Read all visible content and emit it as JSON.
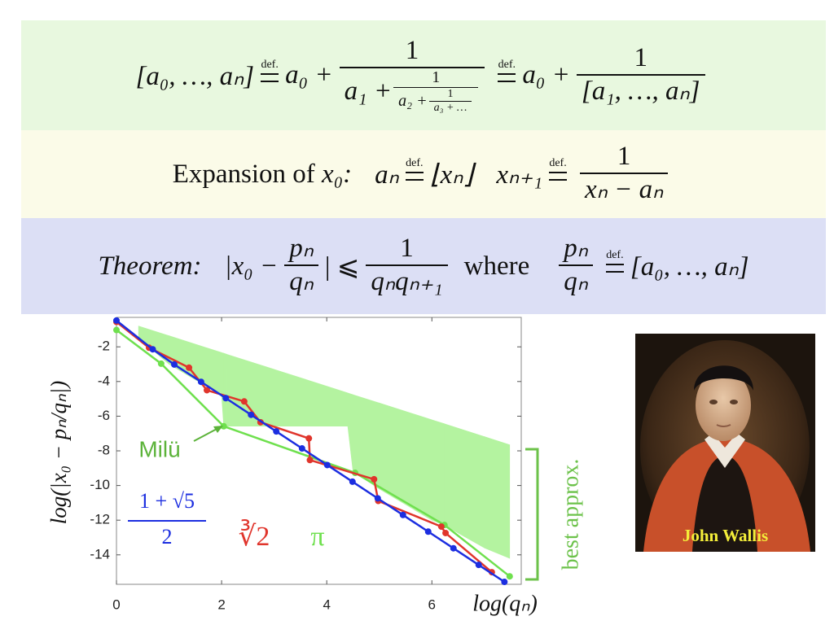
{
  "definition": {
    "lhs": "[a₀, …, aₙ]",
    "def": "def.",
    "term": "a₀ +",
    "fraction": {
      "numerator": "1",
      "denominator": "a₁ +",
      "nested": {
        "numerator": "1",
        "denominator": "a₂ +",
        "nested": {
          "numerator": "1",
          "denominator": "a₃ + …"
        }
      }
    },
    "def_2": "def.",
    "term_2": "a₀ +",
    "fraction_2": {
      "numerator": "1",
      "denominator": "[a₁, …, aₙ]"
    }
  },
  "expansion": {
    "label": "Expansion of",
    "variable": "x₀:",
    "lhs": "aₙ",
    "def": "def.",
    "rhs": "⌊xₙ⌋",
    "lhs_2": "xₙ₊₁",
    "def_2": "def.",
    "numerator": "1",
    "denominator": "xₙ − aₙ"
  },
  "theorem": {
    "label": "Theorem:",
    "abs_open": "|x₀ −",
    "p_num": "pₙ",
    "p_den": "qₙ",
    "abs_close": "| ⩽",
    "numerator": "1",
    "denominator": "qₙqₙ₊₁",
    "where": "where",
    "rhs_num": "pₙ",
    "rhs_den": "qₙ",
    "def": "def.",
    "rhs": "[a₀, …, aₙ]"
  },
  "chart_data": {
    "type": "line",
    "xlabel": "log(qₙ)",
    "ylabel": "log(|x₀ − pₙ/qₙ|)",
    "xlim": [
      0,
      7.7
    ],
    "ylim": [
      -15.7,
      -0.3
    ],
    "xticks": [
      0,
      2,
      4,
      6
    ],
    "yticks": [
      -2,
      -4,
      -6,
      -8,
      -10,
      -12,
      -14
    ],
    "range": {
      "color": "#b4f3a0",
      "x": [
        0.42,
        1,
        2,
        2.04,
        2.1,
        3,
        3.6,
        4.4,
        4.5,
        5,
        6,
        6.24,
        7,
        7.48
      ],
      "upper": [
        -0.8,
        -1.36,
        -2.33,
        -2.37,
        -2.43,
        -3.3,
        -3.88,
        -4.66,
        -4.76,
        -5.24,
        -6.21,
        -6.44,
        -7.18,
        -7.65
      ],
      "lower": [
        -1.5,
        -3.0,
        -4.8,
        -6.58,
        -6.58,
        -6.58,
        -6.58,
        -6.58,
        -9.2,
        -10.2,
        -12.0,
        -12.3,
        -13.6,
        -14.2
      ]
    },
    "series": [
      {
        "name": {
          "numerator": "1 + √5",
          "denominator": "2"
        },
        "color": "#1c2ee0",
        "x": [
          0,
          0.69,
          1.1,
          1.61,
          2.08,
          2.56,
          3.04,
          3.53,
          4.01,
          4.49,
          4.97,
          5.45,
          5.93,
          6.41,
          6.89,
          7.38
        ],
        "values": [
          -0.48,
          -2.14,
          -3.02,
          -4.02,
          -4.96,
          -5.92,
          -6.88,
          -7.86,
          -8.82,
          -9.78,
          -10.74,
          -11.7,
          -12.66,
          -13.62,
          -14.58,
          -15.56
        ]
      },
      {
        "name": "∛2",
        "color": "#e0352c",
        "x": [
          0,
          0.62,
          1.38,
          1.72,
          2.43,
          2.74,
          3.66,
          3.68,
          4.9,
          4.98,
          6.18,
          6.26,
          7.14
        ],
        "values": [
          -0.56,
          -2.05,
          -3.2,
          -4.5,
          -5.15,
          -6.35,
          -7.28,
          -8.53,
          -9.64,
          -10.89,
          -12.37,
          -12.74,
          -15.0
        ]
      },
      {
        "name": "π",
        "color": "#6fe04e",
        "x": [
          0,
          0.85,
          2.04,
          4.54,
          6.24,
          7.48
        ],
        "values": [
          -1.03,
          -2.97,
          -6.58,
          -9.27,
          -12.28,
          -15.24
        ]
      }
    ],
    "annotations": [
      {
        "text": "Milü",
        "color": "#5cb33a"
      },
      {
        "text": "best approx.",
        "color": "#6cc24a"
      }
    ]
  },
  "portrait": {
    "caption": "John Wallis"
  }
}
